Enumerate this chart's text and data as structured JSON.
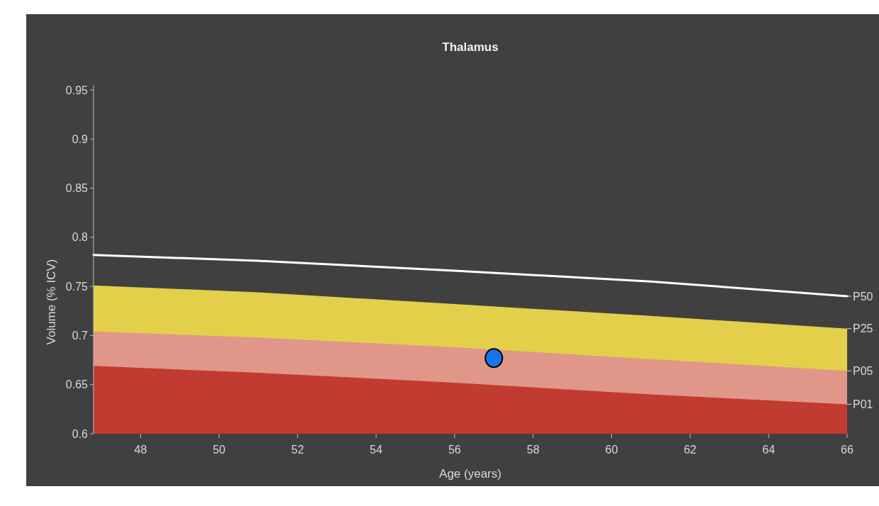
{
  "chart_data": {
    "type": "area",
    "title": "Thalamus",
    "xlabel": "Age (years)",
    "ylabel": "Volume (% ICV)",
    "xlim": [
      46.8,
      66
    ],
    "xticks": [
      48,
      50,
      52,
      54,
      56,
      58,
      60,
      62,
      64,
      66
    ],
    "ylim": [
      0.6,
      0.955
    ],
    "yticks": [
      0.6,
      0.65,
      0.7,
      0.75,
      0.8,
      0.85,
      0.9,
      0.95
    ],
    "x": [
      46.8,
      51,
      56,
      61,
      66
    ],
    "grid": false,
    "series": [
      {
        "name": "P50",
        "type": "line",
        "color": "#ffffff",
        "values": [
          0.782,
          0.776,
          0.766,
          0.755,
          0.74
        ]
      },
      {
        "name": "P25",
        "color": "#e3cf4a",
        "values": [
          0.751,
          0.744,
          0.732,
          0.72,
          0.707
        ]
      },
      {
        "name": "P05",
        "color": "#e0978a",
        "values": [
          0.704,
          0.698,
          0.688,
          0.676,
          0.664
        ]
      },
      {
        "name": "P01",
        "color": "#c23b30",
        "values": [
          0.669,
          0.662,
          0.652,
          0.64,
          0.63
        ]
      },
      {
        "type": "scatter",
        "color": "#1a73e8",
        "marker": "circle",
        "x": [
          57
        ],
        "values": [
          0.677
        ]
      }
    ]
  }
}
